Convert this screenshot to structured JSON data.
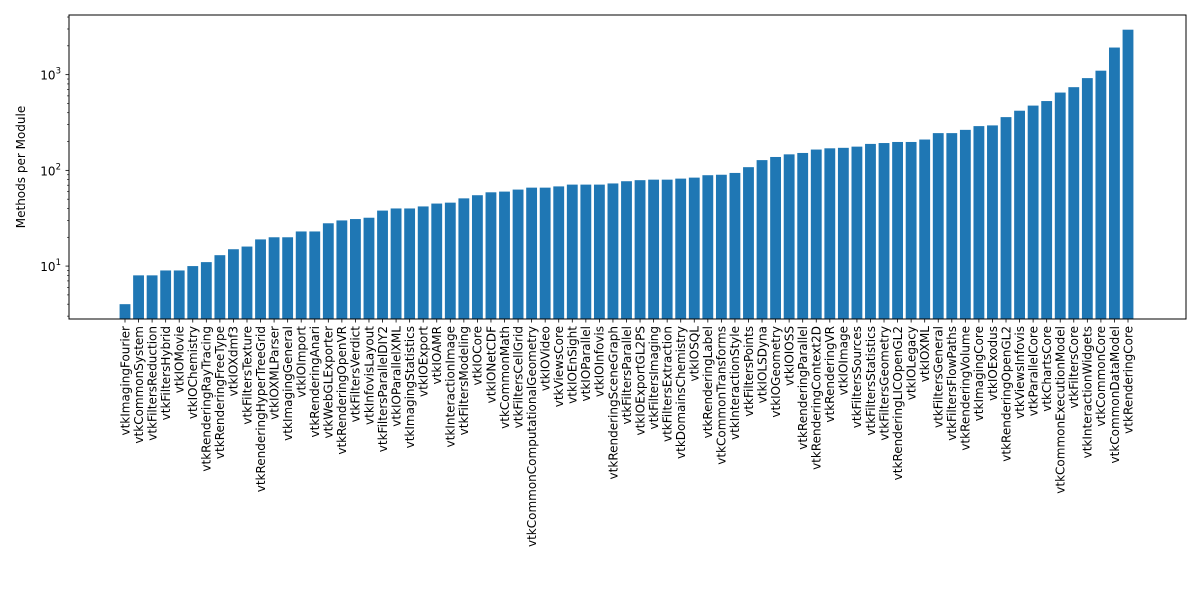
{
  "chart_data": {
    "type": "bar",
    "title": "",
    "xlabel": "",
    "ylabel": "Methods per Module",
    "yscale": "log",
    "ylim": [
      2.8,
      4200
    ],
    "grid": false,
    "bar_color": "#1f77b4",
    "ytick_labels": [
      {
        "value": 10,
        "base": "10",
        "exp": "1"
      },
      {
        "value": 100,
        "base": "10",
        "exp": "2"
      },
      {
        "value": 1000,
        "base": "10",
        "exp": "3"
      }
    ],
    "categories": [
      "vtkImagingFourier",
      "vtkCommonSystem",
      "vtkFiltersReduction",
      "vtkFiltersHybrid",
      "vtkIOMovie",
      "vtkIOChemistry",
      "vtkRenderingRayTracing",
      "vtkRenderingFreeType",
      "vtkIOXdmf3",
      "vtkFiltersTexture",
      "vtkRenderingHyperTreeGrid",
      "vtkIOXMLParser",
      "vtkImagingGeneral",
      "vtkIOImport",
      "vtkRenderingAnari",
      "vtkWebGLExporter",
      "vtkRenderingOpenVR",
      "vtkFiltersVerdict",
      "vtkInfovisLayout",
      "vtkFiltersParallelDIY2",
      "vtkIOParallelXML",
      "vtkImagingStatistics",
      "vtkIOExport",
      "vtkIOAMR",
      "vtkInteractionImage",
      "vtkFiltersModeling",
      "vtkIOCore",
      "vtkIONetCDF",
      "vtkCommonMath",
      "vtkFiltersCellGrid",
      "vtkCommonComputationalGeometry",
      "vtkIOVideo",
      "vtkViewsCore",
      "vtkIOEnSight",
      "vtkIOParallel",
      "vtkIOInfovis",
      "vtkRenderingSceneGraph",
      "vtkFiltersParallel",
      "vtkIOExportGL2PS",
      "vtkFiltersImaging",
      "vtkFiltersExtraction",
      "vtkDomainsChemistry",
      "vtkIOSQL",
      "vtkRenderingLabel",
      "vtkCommonTransforms",
      "vtkInteractionStyle",
      "vtkFiltersPoints",
      "vtkIOLSDyna",
      "vtkIOGeometry",
      "vtkIOIOSS",
      "vtkRenderingParallel",
      "vtkRenderingContext2D",
      "vtkRenderingVR",
      "vtkIOImage",
      "vtkFiltersSources",
      "vtkFiltersStatistics",
      "vtkFiltersGeometry",
      "vtkRenderingLICOpenGL2",
      "vtkIOLegacy",
      "vtkIOXML",
      "vtkFiltersGeneral",
      "vtkFiltersFlowPaths",
      "vtkRenderingVolume",
      "vtkImagingCore",
      "vtkIOExodus",
      "vtkRenderingOpenGL2",
      "vtkViewsInfovis",
      "vtkParallelCore",
      "vtkChartsCore",
      "vtkCommonExecutionModel",
      "vtkFiltersCore",
      "vtkInteractionWidgets",
      "vtkCommonCore",
      "vtkCommonDataModel",
      "vtkRenderingCore"
    ],
    "values": [
      4,
      8,
      8,
      9,
      9,
      10,
      11,
      13,
      15,
      16,
      19,
      20,
      20,
      23,
      23,
      28,
      30,
      31,
      32,
      38,
      40,
      40,
      42,
      45,
      46,
      51,
      55,
      59,
      60,
      63,
      66,
      66,
      68,
      71,
      71,
      71,
      73,
      77,
      79,
      80,
      80,
      82,
      84,
      89,
      90,
      94,
      108,
      128,
      138,
      147,
      152,
      165,
      170,
      172,
      177,
      189,
      193,
      198,
      198,
      210,
      245,
      245,
      265,
      290,
      295,
      360,
      420,
      475,
      530,
      650,
      740,
      920,
      1100,
      1920,
      2950
    ]
  }
}
